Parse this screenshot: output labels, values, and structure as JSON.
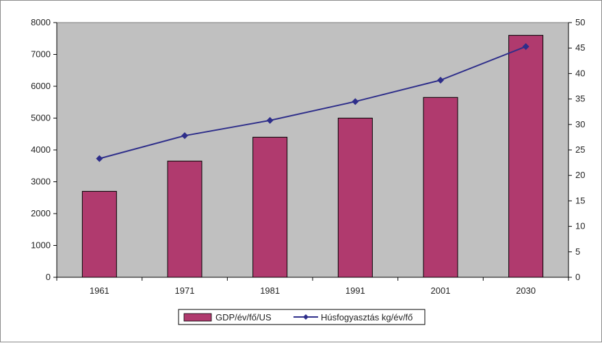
{
  "chart_data": {
    "type": "bar",
    "title": "",
    "xlabel": "",
    "ylabel": "",
    "categories": [
      "1961",
      "1971",
      "1981",
      "1991",
      "2001",
      "2030"
    ],
    "series": [
      {
        "name": "GDP/év/fő/US",
        "type": "bar",
        "axis": "left",
        "color": "#b03a6e",
        "values": [
          2700,
          3650,
          4400,
          5000,
          5650,
          7600
        ]
      },
      {
        "name": "Húsfogyasztás kg/év/fő",
        "type": "line",
        "axis": "right",
        "color": "#2e2e8a",
        "values": [
          23.3,
          27.8,
          30.8,
          34.5,
          38.7,
          45.3
        ]
      }
    ],
    "ylim": [
      0,
      8000
    ],
    "yticks": [
      0,
      1000,
      2000,
      3000,
      4000,
      5000,
      6000,
      7000,
      8000
    ],
    "y2lim": [
      0,
      50
    ],
    "y2ticks": [
      0,
      5,
      10,
      15,
      20,
      25,
      30,
      35,
      40,
      45,
      50
    ],
    "plot_background": "#c0c0c0",
    "grid": false,
    "legend_position": "bottom"
  }
}
